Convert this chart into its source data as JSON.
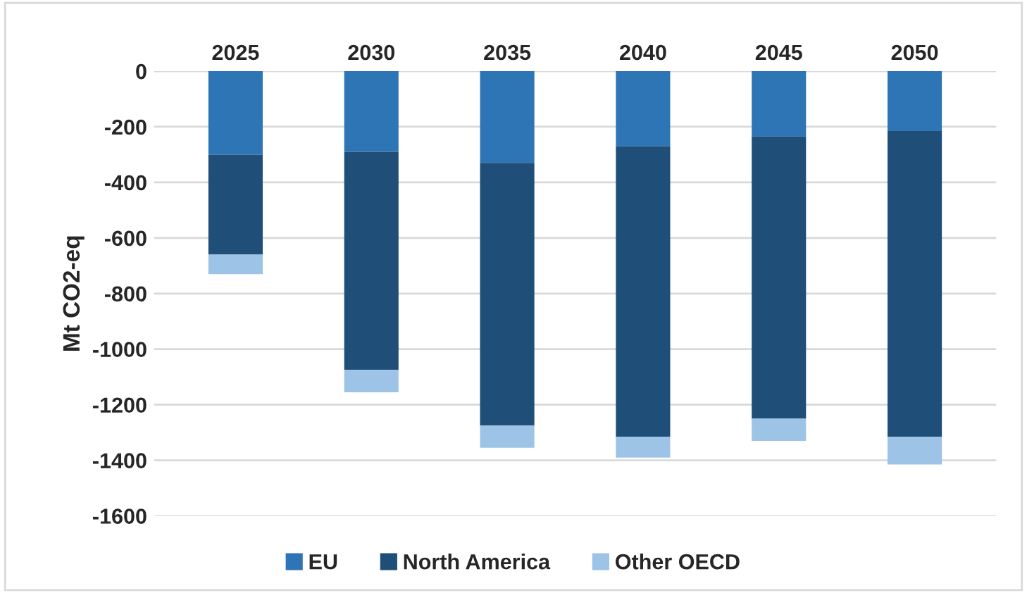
{
  "chart_data": {
    "type": "bar",
    "stacked": true,
    "ylabel": "Mt CO2-eq",
    "categories": [
      "2025",
      "2030",
      "2035",
      "2040",
      "2045",
      "2050"
    ],
    "series": [
      {
        "name": "EU",
        "color": "#2e75b6",
        "values": [
          -300,
          -290,
          -330,
          -270,
          -235,
          -215
        ]
      },
      {
        "name": "North America",
        "color": "#1f4e79",
        "values": [
          -360,
          -785,
          -945,
          -1045,
          -1015,
          -1100
        ]
      },
      {
        "name": "Other OECD",
        "color": "#9dc3e6",
        "values": [
          -70,
          -80,
          -80,
          -75,
          -80,
          -100
        ]
      }
    ],
    "ylim": [
      -1600,
      0
    ],
    "yticks": [
      -1600,
      -1400,
      -1200,
      -1000,
      -800,
      -600,
      -400,
      -200,
      0
    ],
    "grid": "y",
    "legend": "bottom"
  }
}
